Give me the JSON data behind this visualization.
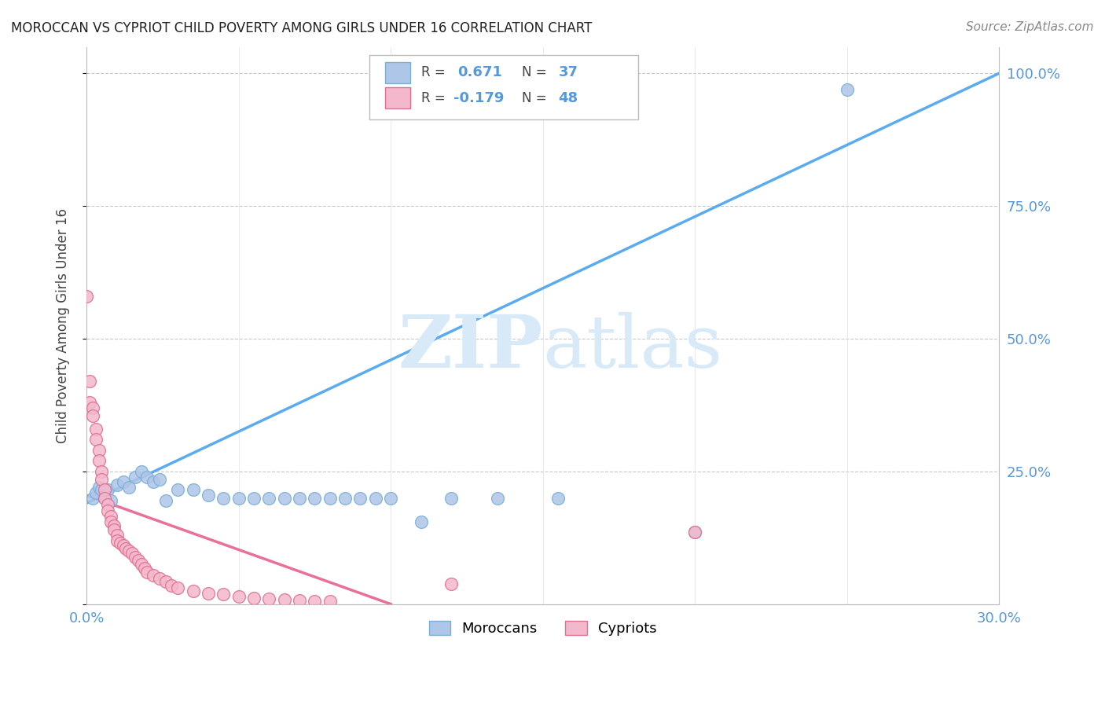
{
  "title": "MOROCCAN VS CYPRIOT CHILD POVERTY AMONG GIRLS UNDER 16 CORRELATION CHART",
  "source": "Source: ZipAtlas.com",
  "ylabel": "Child Poverty Among Girls Under 16",
  "xlim": [
    0,
    0.3
  ],
  "ylim": [
    0,
    1.05
  ],
  "moroccan_color": "#aec6e8",
  "moroccan_edge": "#7bafd4",
  "cypriot_color": "#f4b8cc",
  "cypriot_edge": "#e07090",
  "moroccan_line_color": "#5aabf0",
  "cypriot_line_color": "#e8709a",
  "grid_color": "#c8c8c8",
  "watermark_color": "#d8eaf8",
  "moroccan_x": [
    0.002,
    0.003,
    0.004,
    0.005,
    0.006,
    0.007,
    0.008,
    0.01,
    0.012,
    0.014,
    0.016,
    0.018,
    0.02,
    0.022,
    0.024,
    0.026,
    0.03,
    0.035,
    0.04,
    0.045,
    0.05,
    0.055,
    0.06,
    0.065,
    0.07,
    0.075,
    0.08,
    0.085,
    0.09,
    0.095,
    0.1,
    0.11,
    0.12,
    0.135,
    0.155,
    0.2,
    0.25
  ],
  "moroccan_y": [
    0.2,
    0.21,
    0.22,
    0.215,
    0.2,
    0.215,
    0.195,
    0.225,
    0.23,
    0.22,
    0.24,
    0.25,
    0.24,
    0.23,
    0.235,
    0.195,
    0.215,
    0.215,
    0.205,
    0.2,
    0.2,
    0.2,
    0.2,
    0.2,
    0.2,
    0.2,
    0.2,
    0.2,
    0.2,
    0.2,
    0.2,
    0.155,
    0.2,
    0.2,
    0.2,
    0.135,
    0.97
  ],
  "cypriot_x": [
    0.0,
    0.001,
    0.001,
    0.002,
    0.002,
    0.003,
    0.003,
    0.004,
    0.004,
    0.005,
    0.005,
    0.006,
    0.006,
    0.007,
    0.007,
    0.008,
    0.008,
    0.009,
    0.009,
    0.01,
    0.01,
    0.011,
    0.012,
    0.013,
    0.014,
    0.015,
    0.016,
    0.017,
    0.018,
    0.019,
    0.02,
    0.022,
    0.024,
    0.026,
    0.028,
    0.03,
    0.035,
    0.04,
    0.045,
    0.05,
    0.055,
    0.06,
    0.065,
    0.07,
    0.075,
    0.08,
    0.12,
    0.2
  ],
  "cypriot_y": [
    0.58,
    0.42,
    0.38,
    0.37,
    0.355,
    0.33,
    0.31,
    0.29,
    0.27,
    0.25,
    0.235,
    0.215,
    0.2,
    0.188,
    0.175,
    0.165,
    0.155,
    0.148,
    0.14,
    0.13,
    0.12,
    0.115,
    0.11,
    0.105,
    0.1,
    0.095,
    0.088,
    0.082,
    0.075,
    0.068,
    0.06,
    0.055,
    0.048,
    0.042,
    0.035,
    0.03,
    0.025,
    0.02,
    0.018,
    0.015,
    0.012,
    0.01,
    0.008,
    0.007,
    0.006,
    0.005,
    0.038,
    0.135
  ],
  "moroccan_line_x": [
    0.0,
    0.3
  ],
  "moroccan_line_y": [
    0.19,
    1.0
  ],
  "cypriot_line_x": [
    0.0,
    0.1
  ],
  "cypriot_line_y": [
    0.205,
    0.0
  ]
}
